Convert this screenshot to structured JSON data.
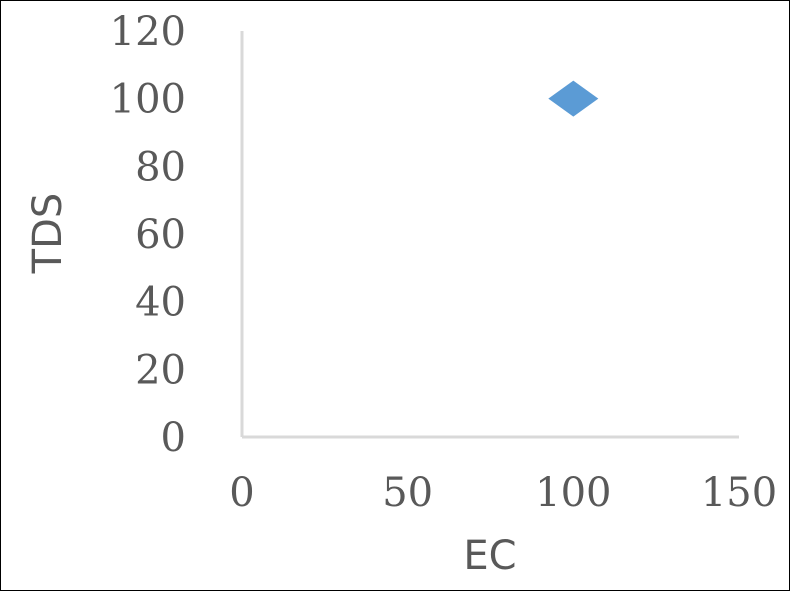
{
  "chart_data": {
    "type": "scatter",
    "xlabel": "EC",
    "ylabel": "TDS",
    "xlim": [
      0,
      150
    ],
    "ylim": [
      0,
      120
    ],
    "xticks": [
      0,
      50,
      100,
      150
    ],
    "yticks": [
      0,
      20,
      40,
      60,
      80,
      100,
      120
    ],
    "grid": false,
    "legend": "none",
    "series": [
      {
        "x": [
          100
        ],
        "y": [
          100
        ],
        "color": "#5B9BD5",
        "marker": "diamond"
      }
    ],
    "axis_color": "#D9D9D9"
  }
}
